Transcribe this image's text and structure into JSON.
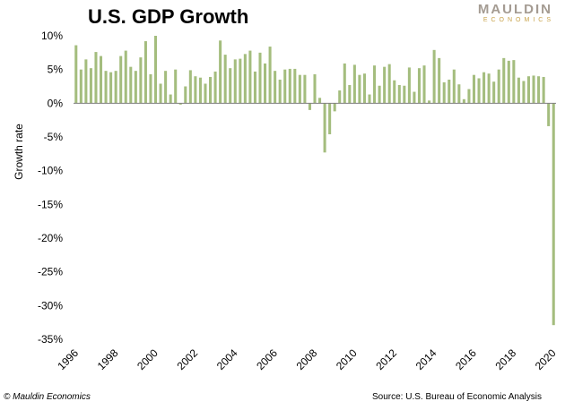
{
  "title": "U.S. GDP Growth",
  "logo": {
    "main": "MAULDIN",
    "sub": "ECONOMICS"
  },
  "copyright": "© Mauldin Economics",
  "source": "Source: U.S. Bureau of Economic Analysis",
  "colors": {
    "bar": "#a4bd7e",
    "zero_line": "#7f7f7f",
    "logo_main": "#a49b92",
    "logo_sub": "#c9a34a"
  },
  "chart_data": {
    "type": "bar",
    "title": "U.S. GDP Growth",
    "xlabel": "",
    "ylabel": "Growth rate",
    "ylim": [
      -35,
      10
    ],
    "y_ticks": [
      10,
      5,
      0,
      -5,
      -10,
      -15,
      -20,
      -25,
      -30,
      -35
    ],
    "y_tick_labels": [
      "10%",
      "5%",
      "0%",
      "-5%",
      "-10%",
      "-15%",
      "-20%",
      "-25%",
      "-30%",
      "-35%"
    ],
    "x_tick_labels": [
      "1996",
      "1998",
      "2000",
      "2002",
      "2004",
      "2006",
      "2008",
      "2010",
      "2012",
      "2014",
      "2016",
      "2018",
      "2020"
    ],
    "x_start_year": 1996,
    "grid": false,
    "legend": "none",
    "series": [
      {
        "values": [
          8.6,
          5.0,
          6.5,
          5.2,
          7.6,
          7.0,
          4.8,
          4.6,
          4.8,
          7.0,
          7.8,
          5.4,
          4.8,
          6.8,
          9.2,
          4.3,
          10.0,
          2.9,
          4.8,
          1.3,
          5.0,
          -0.2,
          2.5,
          4.9,
          4.0,
          3.8,
          2.9,
          3.9,
          4.7,
          9.3,
          7.2,
          5.2,
          6.5,
          6.6,
          7.3,
          7.8,
          4.7,
          7.5,
          5.9,
          8.4,
          4.8,
          3.5,
          5.0,
          5.1,
          5.1,
          4.2,
          4.2,
          -1.0,
          4.3,
          0.8,
          -7.3,
          -4.6,
          -1.2,
          1.9,
          5.9,
          2.7,
          5.7,
          4.2,
          4.4,
          1.3,
          5.6,
          2.6,
          5.4,
          5.8,
          3.4,
          2.7,
          2.6,
          5.3,
          1.7,
          5.2,
          5.6,
          0.4,
          7.9,
          6.7,
          3.1,
          3.5,
          5.0,
          2.8,
          0.6,
          2.1,
          4.2,
          3.7,
          4.6,
          4.4,
          3.2,
          5.0,
          6.7,
          6.3,
          6.4,
          3.8,
          3.3,
          4.0,
          4.1,
          4.0,
          3.9,
          -3.4,
          -32.9
        ]
      }
    ]
  }
}
